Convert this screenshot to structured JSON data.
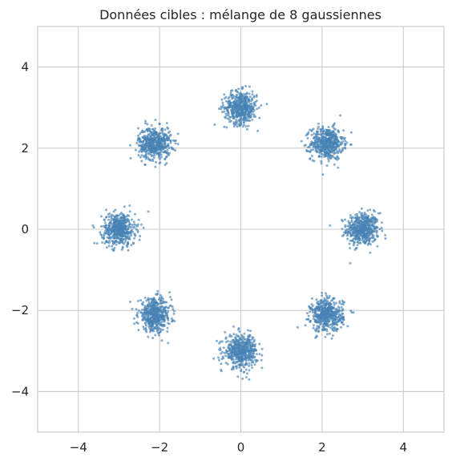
{
  "chart_data": {
    "type": "scatter",
    "title": "Données cibles : mélange de 8 gaussiennes",
    "xlabel": "",
    "ylabel": "",
    "xlim": [
      -5,
      5
    ],
    "ylim": [
      -5,
      5
    ],
    "x_ticks": [
      -4,
      -2,
      0,
      2,
      4
    ],
    "y_ticks": [
      -4,
      -2,
      0,
      2,
      4
    ],
    "x_tick_labels": [
      "−4",
      "−2",
      "0",
      "2",
      "4"
    ],
    "y_tick_labels": [
      "−4",
      "−2",
      "0",
      "2",
      "4"
    ],
    "grid": true,
    "legend": "none",
    "series": [
      {
        "color": "#4682b4",
        "cluster_centers": [
          [
            3,
            0
          ],
          [
            2.12,
            2.12
          ],
          [
            0,
            3
          ],
          [
            -2.12,
            2.12
          ],
          [
            -3,
            0
          ],
          [
            -2.12,
            -2.12
          ],
          [
            0,
            -3
          ],
          [
            2.12,
            -2.12
          ]
        ],
        "cluster_std": 0.2,
        "points_per_cluster": 500
      }
    ]
  }
}
